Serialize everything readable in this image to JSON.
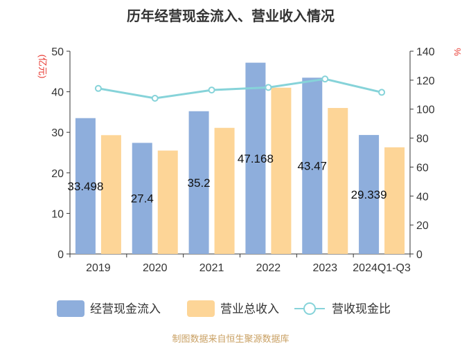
{
  "chart_data": {
    "type": "bar",
    "title": "历年经营现金流入、营业收入情况",
    "categories": [
      "2019",
      "2020",
      "2021",
      "2022",
      "2023",
      "2024Q1-Q3"
    ],
    "series": [
      {
        "name": "经营现金流入",
        "type": "bar",
        "axis": "left",
        "color": "#8eaedc",
        "values": [
          33.498,
          27.4,
          35.2,
          47.168,
          43.47,
          29.339
        ],
        "labels": [
          "33.498",
          "27.4",
          "35.2",
          "47.168",
          "43.47",
          "29.339"
        ]
      },
      {
        "name": "营业总收入",
        "type": "bar",
        "axis": "left",
        "color": "#fdd597",
        "values": [
          29.3,
          25.5,
          31.1,
          41.0,
          36.0,
          26.3
        ]
      },
      {
        "name": "营收现金比",
        "type": "line",
        "axis": "right",
        "color": "#86d3d9",
        "values": [
          114.3,
          107.5,
          113.2,
          115.0,
          120.8,
          111.6
        ]
      }
    ],
    "y_left": {
      "label": "(亿元)",
      "ticks": [
        "0",
        "10",
        "20",
        "30",
        "40",
        "50"
      ],
      "range": [
        0,
        50
      ]
    },
    "y_right": {
      "label": "%",
      "ticks": [
        "0",
        "20",
        "40",
        "60",
        "80",
        "100",
        "120",
        "140"
      ],
      "range": [
        0,
        140
      ]
    },
    "legend_position": "bottom",
    "grid": false
  },
  "source": "制图数据来自恒生聚源数据库",
  "colors": {
    "axis_label": "#e8362e",
    "source": "#c9a063",
    "axis": "#333333"
  }
}
